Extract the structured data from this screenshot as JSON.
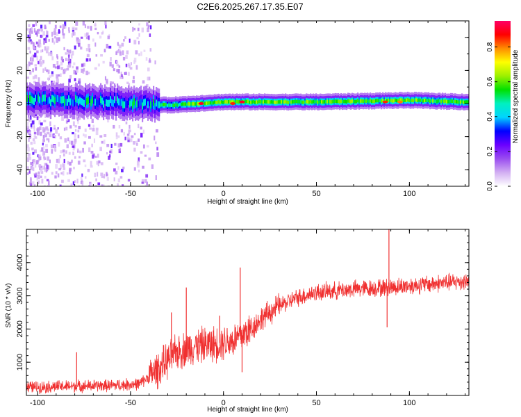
{
  "figure_title": "C2E6.2025.267.17.35.E07",
  "chart_data": [
    {
      "type": "heatmap",
      "title": "",
      "xlabel": "Height of straight line (km)",
      "ylabel": "Frequency (Hz)",
      "xlim": [
        -106,
        132
      ],
      "ylim": [
        -50,
        50
      ],
      "xticks": [
        -100,
        -50,
        0,
        50,
        100
      ],
      "yticks": [
        -40,
        -20,
        0,
        20,
        40
      ],
      "colorbar": {
        "label": "Normalized spectral amplitude",
        "range": [
          0,
          0.95
        ],
        "ticks": [
          0.0,
          0.2,
          0.4,
          0.6,
          0.8
        ],
        "colormap": [
          "#ffffff",
          "#d2aef2",
          "#9a4df0",
          "#6a00ff",
          "#0000ff",
          "#00d4ff",
          "#00f0c0",
          "#00e000",
          "#9cf000",
          "#ffff00",
          "#ff8c00",
          "#ff0000",
          "#ff0066"
        ]
      },
      "band_center_hz": [
        {
          "x": -100,
          "hz": 2
        },
        {
          "x": -60,
          "hz": 1
        },
        {
          "x": -30,
          "hz": -1
        },
        {
          "x": 0,
          "hz": 1
        },
        {
          "x": 50,
          "hz": 1
        },
        {
          "x": 100,
          "hz": 2
        },
        {
          "x": 130,
          "hz": 1
        }
      ],
      "peaks": [
        {
          "x": -12,
          "hz": 0,
          "amplitude": 0.9
        },
        {
          "x": 5,
          "hz": 0,
          "amplitude": 0.85
        },
        {
          "x": 10,
          "hz": 1,
          "amplitude": 0.9
        },
        {
          "x": 87,
          "hz": 1,
          "amplitude": 0.85
        },
        {
          "x": 95,
          "hz": 1,
          "amplitude": 0.8
        }
      ]
    },
    {
      "type": "line",
      "title": "",
      "xlabel": "Height of straight line (km)",
      "ylabel": "SNR (10 * v/v)",
      "xlim": [
        -106,
        132
      ],
      "ylim": [
        0,
        5000
      ],
      "xticks": [
        -100,
        -50,
        0,
        50,
        100
      ],
      "yticks": [
        1000,
        2000,
        3000,
        4000
      ],
      "series": [
        {
          "name": "SNR",
          "color": "#f03030",
          "trend": [
            {
              "x": -106,
              "y": 250
            },
            {
              "x": -60,
              "y": 300
            },
            {
              "x": -45,
              "y": 350
            },
            {
              "x": -35,
              "y": 800
            },
            {
              "x": -25,
              "y": 1300
            },
            {
              "x": -15,
              "y": 1500
            },
            {
              "x": -5,
              "y": 1550
            },
            {
              "x": 5,
              "y": 1650
            },
            {
              "x": 15,
              "y": 2000
            },
            {
              "x": 20,
              "y": 2300
            },
            {
              "x": 30,
              "y": 2700
            },
            {
              "x": 40,
              "y": 2950
            },
            {
              "x": 50,
              "y": 3100
            },
            {
              "x": 70,
              "y": 3200
            },
            {
              "x": 88,
              "y": 3250
            },
            {
              "x": 100,
              "y": 3300
            },
            {
              "x": 132,
              "y": 3450
            }
          ],
          "spikes": [
            {
              "x": -79,
              "y": 1300
            },
            {
              "x": -28,
              "y": 2500
            },
            {
              "x": -20,
              "y": 3250
            },
            {
              "x": -2,
              "y": 2400
            },
            {
              "x": 9,
              "y": 3850
            },
            {
              "x": 10,
              "y": 700
            },
            {
              "x": 89,
              "y": 5000
            },
            {
              "x": 88,
              "y": 2050
            }
          ]
        }
      ]
    }
  ]
}
